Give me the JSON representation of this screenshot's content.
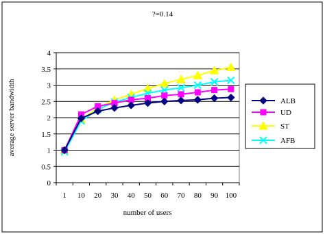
{
  "chart_data": {
    "type": "line",
    "title": "?=0.14",
    "xlabel": "number of users",
    "ylabel": "average server bandwidth",
    "categories": [
      "1",
      "10",
      "20",
      "30",
      "40",
      "50",
      "60",
      "70",
      "80",
      "90",
      "100"
    ],
    "ylim": [
      0,
      4
    ],
    "yticks": [
      "0",
      "0.5",
      "1",
      "1.5",
      "2",
      "2.5",
      "3",
      "3.5",
      "4"
    ],
    "grid": true,
    "legend_position": "right",
    "series": [
      {
        "name": "ALB",
        "color": "#000080",
        "marker": "diamond",
        "values": [
          1.0,
          1.98,
          2.2,
          2.3,
          2.38,
          2.45,
          2.5,
          2.53,
          2.55,
          2.6,
          2.62
        ]
      },
      {
        "name": "UD",
        "color": "#ff00ff",
        "marker": "square",
        "values": [
          1.0,
          2.1,
          2.35,
          2.45,
          2.55,
          2.6,
          2.68,
          2.72,
          2.78,
          2.85,
          2.88
        ]
      },
      {
        "name": "ST",
        "color": "#ffff00",
        "marker": "triangle",
        "values": [
          1.0,
          1.95,
          2.3,
          2.55,
          2.72,
          2.9,
          3.05,
          3.18,
          3.3,
          3.45,
          3.55
        ]
      },
      {
        "name": "AFB",
        "color": "#00ffff",
        "marker": "x",
        "values": [
          0.95,
          1.9,
          2.25,
          2.48,
          2.62,
          2.75,
          2.85,
          2.92,
          3.0,
          3.1,
          3.15
        ]
      }
    ]
  }
}
